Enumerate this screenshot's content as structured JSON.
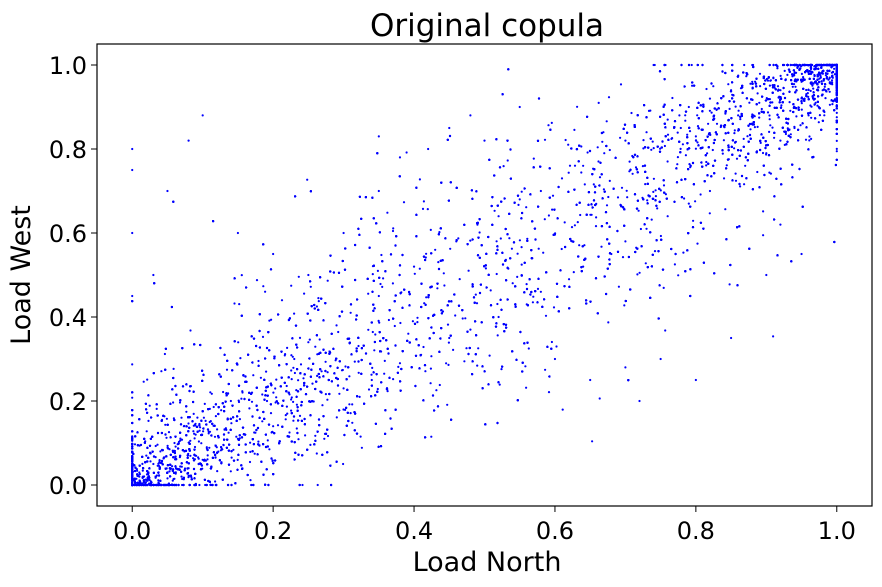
{
  "chart_data": {
    "type": "scatter",
    "title": "Original copula",
    "xlabel": "Load North",
    "ylabel": "Load West",
    "xlim": [
      -0.05,
      1.05
    ],
    "ylim": [
      -0.05,
      1.05
    ],
    "xticks": [
      "0.0",
      "0.2",
      "0.4",
      "0.6",
      "0.8",
      "1.0"
    ],
    "yticks": [
      "0.0",
      "0.2",
      "0.4",
      "0.6",
      "0.8",
      "1.0"
    ],
    "grid": false,
    "legend": "none",
    "point_color": "#0000ff",
    "series": [
      {
        "description_of_density": "dense cloud concentrated along diagonal, strongest near (0,0) and (1,1)",
        "points": [
          [
            0.0,
            0.0
          ],
          [
            0.01,
            0.02
          ],
          [
            0.02,
            0.01
          ],
          [
            0.03,
            0.05
          ],
          [
            0.05,
            0.03
          ],
          [
            0.04,
            0.08
          ],
          [
            0.08,
            0.04
          ],
          [
            0.06,
            0.1
          ],
          [
            0.1,
            0.06
          ],
          [
            0.07,
            0.02
          ],
          [
            0.02,
            0.07
          ],
          [
            0.09,
            0.12
          ],
          [
            0.12,
            0.09
          ],
          [
            0.11,
            0.15
          ],
          [
            0.15,
            0.11
          ],
          [
            0.14,
            0.2
          ],
          [
            0.2,
            0.14
          ],
          [
            0.17,
            0.22
          ],
          [
            0.22,
            0.17
          ],
          [
            0.19,
            0.27
          ],
          [
            0.27,
            0.19
          ],
          [
            0.23,
            0.3
          ],
          [
            0.3,
            0.23
          ],
          [
            0.25,
            0.34
          ],
          [
            0.34,
            0.25
          ],
          [
            0.29,
            0.38
          ],
          [
            0.38,
            0.29
          ],
          [
            0.31,
            0.41
          ],
          [
            0.41,
            0.31
          ],
          [
            0.35,
            0.45
          ],
          [
            0.45,
            0.35
          ],
          [
            0.37,
            0.48
          ],
          [
            0.48,
            0.37
          ],
          [
            0.4,
            0.52
          ],
          [
            0.52,
            0.4
          ],
          [
            0.43,
            0.56
          ],
          [
            0.56,
            0.43
          ],
          [
            0.46,
            0.58
          ],
          [
            0.58,
            0.46
          ],
          [
            0.49,
            0.62
          ],
          [
            0.62,
            0.49
          ],
          [
            0.52,
            0.64
          ],
          [
            0.64,
            0.52
          ],
          [
            0.55,
            0.68
          ],
          [
            0.68,
            0.55
          ],
          [
            0.58,
            0.7
          ],
          [
            0.7,
            0.58
          ],
          [
            0.61,
            0.73
          ],
          [
            0.73,
            0.61
          ],
          [
            0.64,
            0.76
          ],
          [
            0.76,
            0.64
          ],
          [
            0.67,
            0.79
          ],
          [
            0.79,
            0.67
          ],
          [
            0.7,
            0.82
          ],
          [
            0.82,
            0.7
          ],
          [
            0.73,
            0.84
          ],
          [
            0.84,
            0.73
          ],
          [
            0.76,
            0.87
          ],
          [
            0.87,
            0.76
          ],
          [
            0.79,
            0.9
          ],
          [
            0.9,
            0.79
          ],
          [
            0.82,
            0.92
          ],
          [
            0.92,
            0.82
          ],
          [
            0.85,
            0.94
          ],
          [
            0.94,
            0.85
          ],
          [
            0.88,
            0.96
          ],
          [
            0.96,
            0.88
          ],
          [
            0.91,
            0.97
          ],
          [
            0.97,
            0.91
          ],
          [
            0.94,
            0.98
          ],
          [
            0.98,
            0.94
          ],
          [
            0.97,
            0.99
          ],
          [
            0.99,
            0.97
          ],
          [
            1.0,
            1.0
          ],
          [
            0.95,
            0.96
          ],
          [
            0.92,
            0.94
          ],
          [
            0.89,
            0.91
          ],
          [
            0.86,
            0.88
          ],
          [
            0.83,
            0.86
          ],
          [
            0.8,
            0.83
          ],
          [
            0.45,
            0.85
          ],
          [
            0.48,
            0.88
          ],
          [
            0.5,
            0.82
          ],
          [
            0.42,
            0.8
          ],
          [
            0.38,
            0.78
          ],
          [
            0.55,
            0.9
          ],
          [
            0.35,
            0.83
          ],
          [
            0.6,
            0.3
          ],
          [
            0.65,
            0.25
          ],
          [
            0.7,
            0.28
          ],
          [
            0.75,
            0.3
          ],
          [
            0.72,
            0.2
          ],
          [
            0.8,
            0.25
          ],
          [
            0.85,
            0.35
          ],
          [
            0.9,
            0.5
          ],
          [
            0.95,
            0.55
          ],
          [
            0.92,
            0.62
          ],
          [
            0.0,
            0.8
          ],
          [
            0.0,
            0.75
          ],
          [
            0.0,
            0.6
          ],
          [
            0.05,
            0.7
          ],
          [
            0.1,
            0.88
          ],
          [
            0.08,
            0.82
          ],
          [
            0.0,
            0.45
          ],
          [
            0.03,
            0.5
          ],
          [
            0.25,
            0.5
          ],
          [
            0.3,
            0.6
          ],
          [
            0.2,
            0.55
          ],
          [
            0.15,
            0.6
          ],
          [
            0.35,
            0.7
          ]
        ]
      }
    ]
  }
}
